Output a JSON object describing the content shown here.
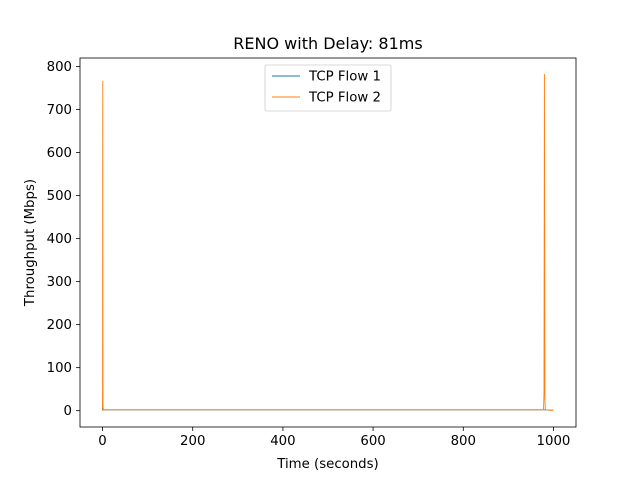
{
  "chart_data": {
    "type": "line",
    "title": "RENO with Delay: 81ms",
    "xlabel": "Time (seconds)",
    "ylabel": "Throughput (Mbps)",
    "xlim": [
      -50,
      1050
    ],
    "ylim": [
      -38,
      820
    ],
    "xticks": [
      0,
      200,
      400,
      600,
      800,
      1000
    ],
    "yticks": [
      0,
      100,
      200,
      300,
      400,
      500,
      600,
      700,
      800
    ],
    "grid": false,
    "legend_position": "top-center",
    "series": [
      {
        "name": "TCP Flow 1",
        "color": "#1f77b4",
        "x": [
          0,
          0.5,
          1,
          2,
          5,
          100,
          200,
          300,
          400,
          500,
          600,
          700,
          800,
          900,
          978,
          979,
          980,
          981,
          982,
          990,
          1000
        ],
        "y": [
          0,
          18,
          3,
          2,
          2,
          2,
          2,
          2,
          2,
          2,
          2,
          2,
          2,
          2,
          2,
          2,
          2,
          2,
          2,
          1,
          1
        ]
      },
      {
        "name": "TCP Flow 2",
        "color": "#ff7f0e",
        "x": [
          0,
          0.5,
          1,
          2,
          5,
          100,
          200,
          300,
          400,
          500,
          600,
          700,
          800,
          900,
          978,
          979,
          980,
          981,
          982,
          990,
          1000
        ],
        "y": [
          0,
          766,
          10,
          2,
          2,
          2,
          2,
          2,
          2,
          2,
          2,
          2,
          2,
          2,
          2,
          40,
          782,
          30,
          2,
          1,
          1
        ]
      }
    ]
  }
}
